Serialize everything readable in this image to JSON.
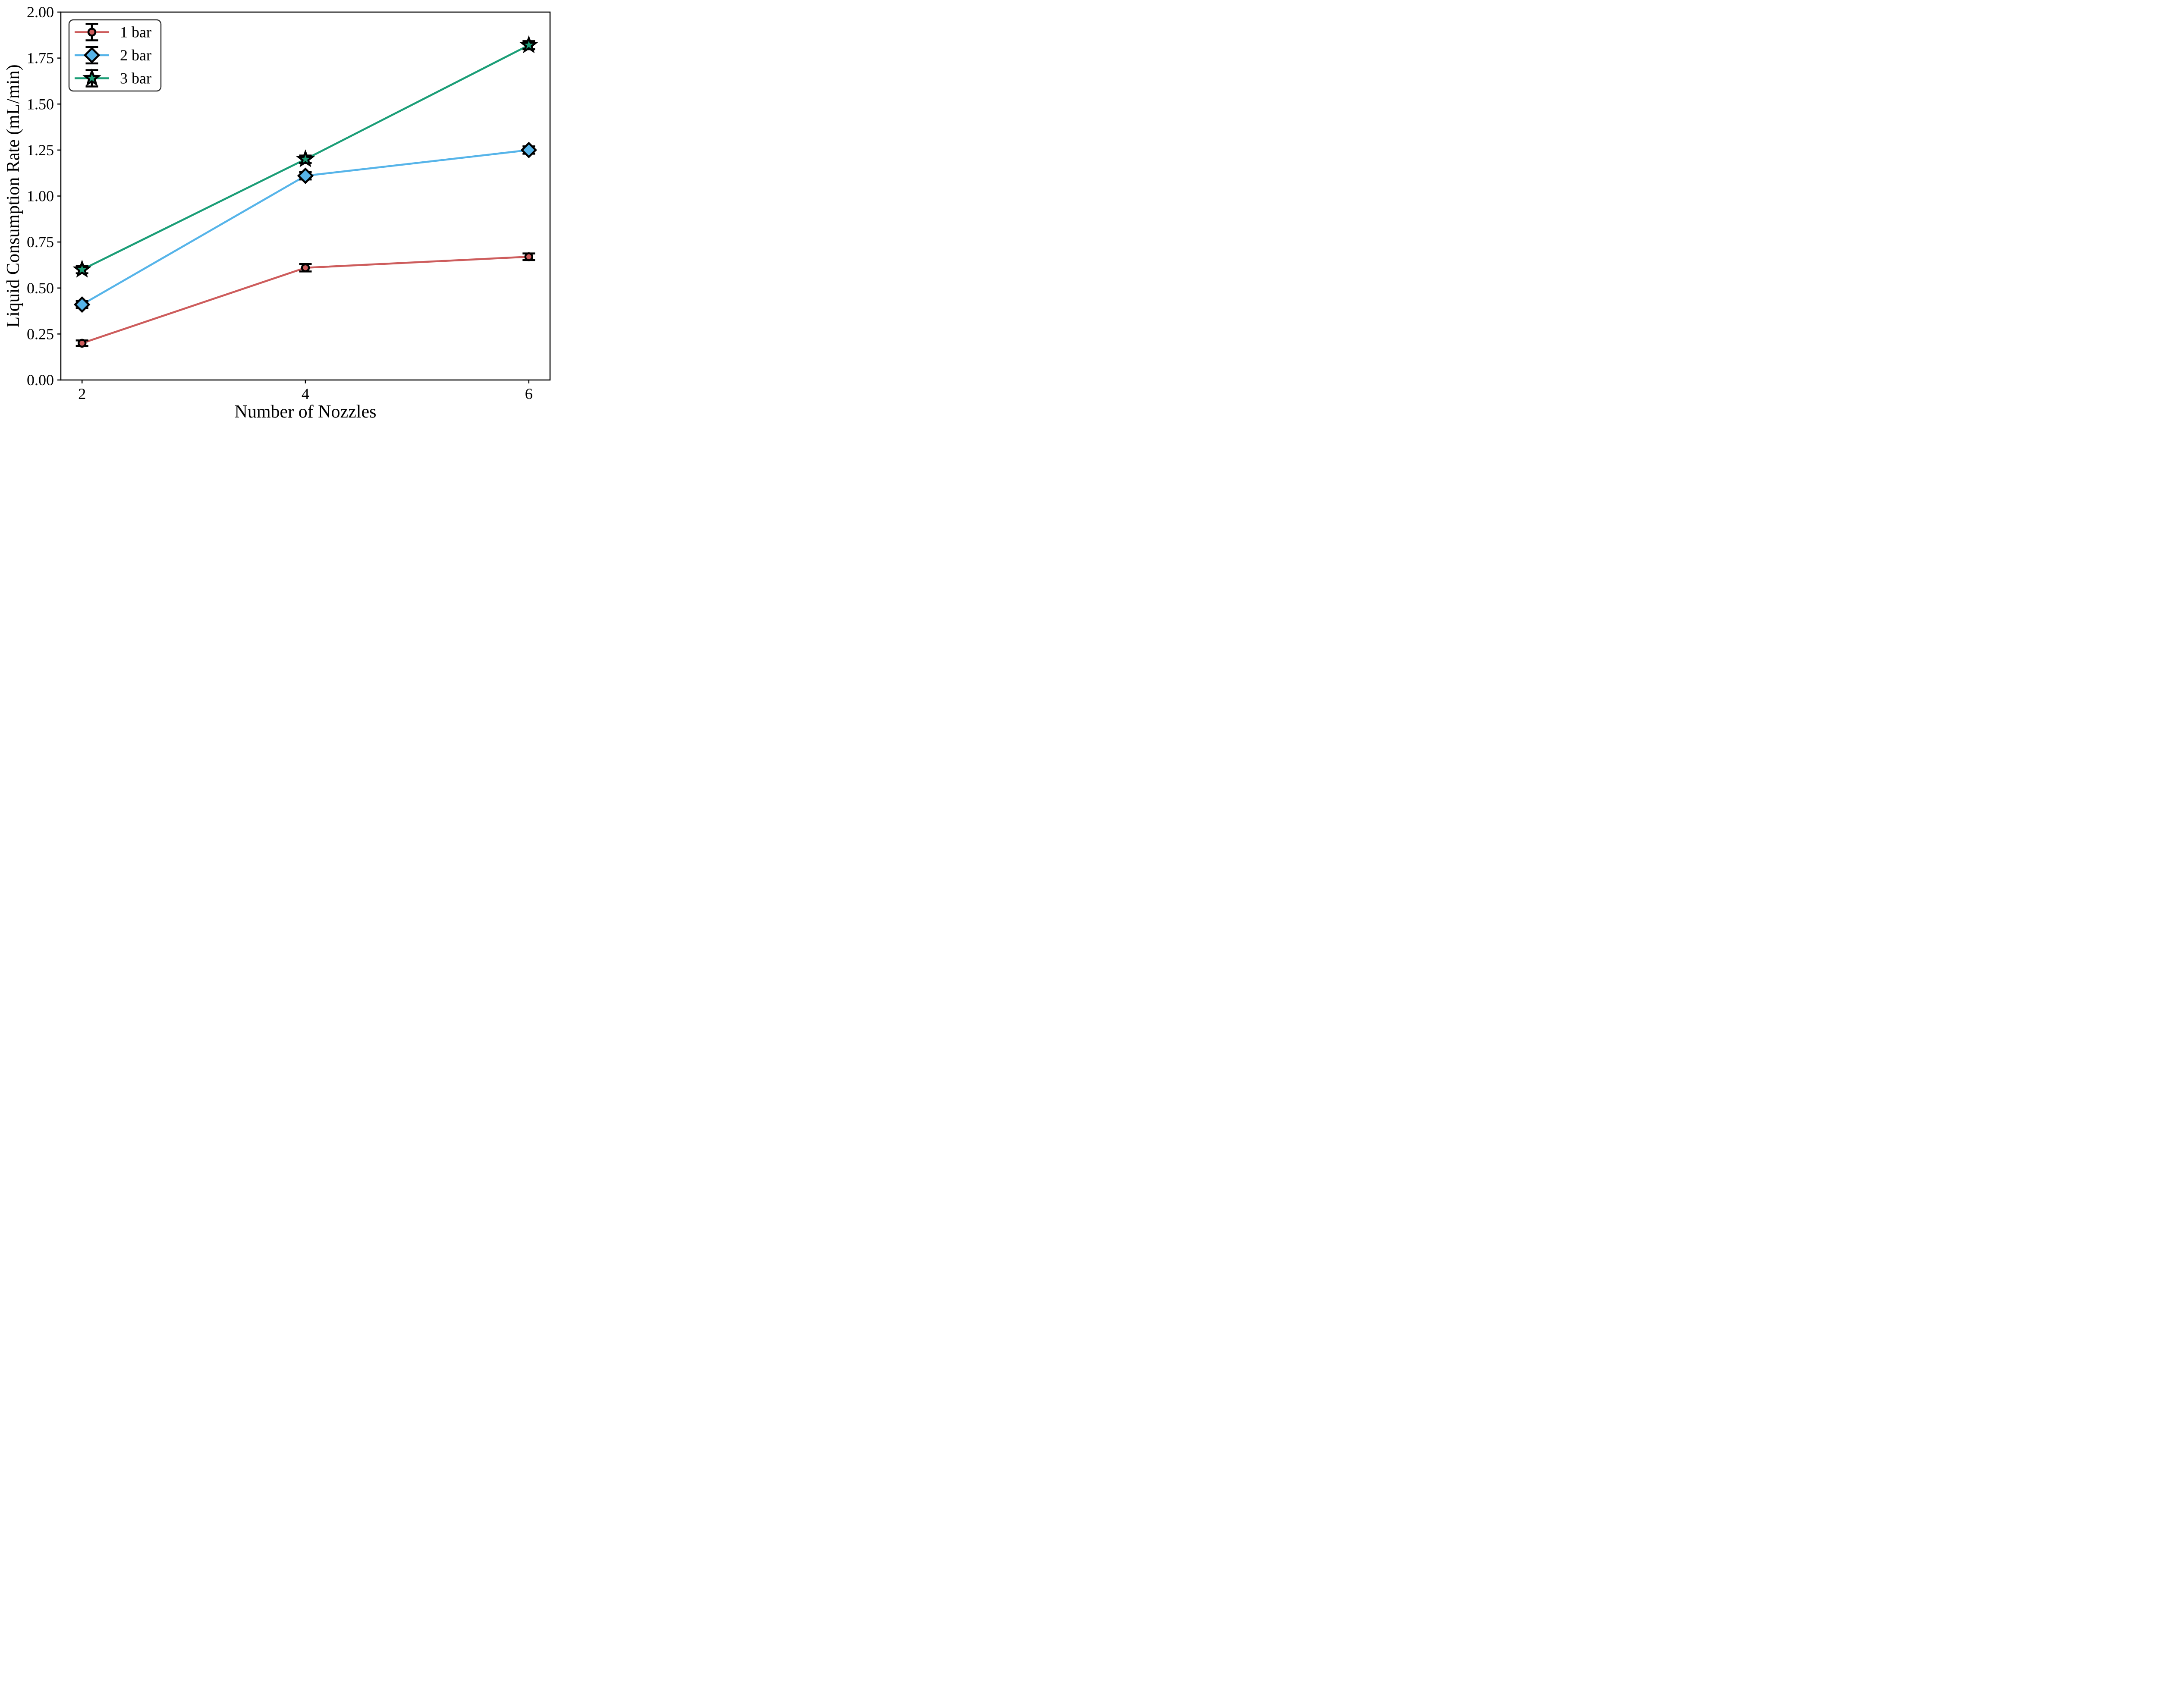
{
  "chart_data": {
    "type": "line",
    "title": "",
    "xlabel": "Number of Nozzles",
    "ylabel": "Liquid Consumption Rate (mL/min)",
    "x": [
      2,
      4,
      6
    ],
    "xticks": [
      "2",
      "4",
      "6"
    ],
    "yticks": [
      0.0,
      0.25,
      0.5,
      0.75,
      1.0,
      1.25,
      1.5,
      1.75,
      2.0
    ],
    "ytick_labels": [
      "0.00",
      "0.25",
      "0.50",
      "0.75",
      "1.00",
      "1.25",
      "1.50",
      "1.75",
      "2.00"
    ],
    "xlim": [
      1.81,
      6.19
    ],
    "ylim": [
      0.0,
      2.0
    ],
    "grid": false,
    "legend_position": "upper left",
    "background_color": "#ffffff",
    "axis_color": "#000000",
    "error_bar_color": "#000000",
    "marker_edge_color": "#000000",
    "legend_border_color": "#333333",
    "series": [
      {
        "name": "1 bar",
        "marker": "circle",
        "color": "#CD5C5C",
        "values": [
          0.2,
          0.61,
          0.67
        ],
        "errors": [
          0.015,
          0.02,
          0.018
        ]
      },
      {
        "name": "2 bar",
        "marker": "diamond",
        "color": "#56B4E9",
        "values": [
          0.41,
          1.11,
          1.25
        ],
        "errors": [
          0.02,
          0.02,
          0.02
        ]
      },
      {
        "name": "3 bar",
        "marker": "star",
        "color": "#1B9E77",
        "values": [
          0.6,
          1.2,
          1.82
        ],
        "errors": [
          0.02,
          0.02,
          0.022
        ]
      }
    ]
  }
}
